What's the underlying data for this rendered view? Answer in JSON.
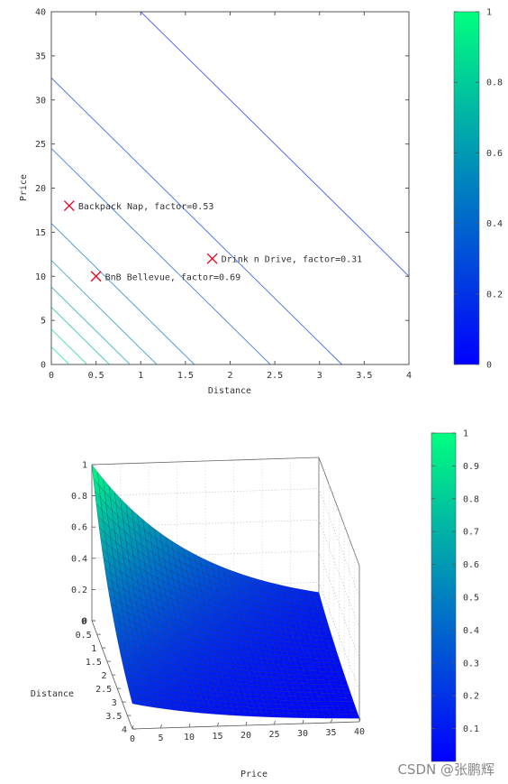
{
  "chart_data": [
    {
      "type": "contour",
      "xlabel": "Distance",
      "ylabel": "Price",
      "xlim": [
        0,
        4
      ],
      "ylim": [
        0,
        40
      ],
      "x_ticks": [
        "0",
        "0.5",
        "1",
        "1.5",
        "2",
        "2.5",
        "3",
        "3.5",
        "4"
      ],
      "y_ticks": [
        "0",
        "5",
        "10",
        "15",
        "20",
        "25",
        "30",
        "35",
        "40"
      ],
      "contour_intercepts": [
        {
          "distance": 0.2,
          "price": 2
        },
        {
          "distance": 0.4,
          "price": 4
        },
        {
          "distance": 0.65,
          "price": 6.5
        },
        {
          "distance": 0.88,
          "price": 8.8
        },
        {
          "distance": 1.18,
          "price": 11.8
        },
        {
          "distance": 1.6,
          "price": 16
        },
        {
          "distance": 2.45,
          "price": 24.5
        },
        {
          "distance": 3.25,
          "price": 32.5
        },
        {
          "distance": 5.0,
          "price": 50
        }
      ],
      "points": [
        {
          "label": "Backpack Nap, factor=0.53",
          "x": 0.2,
          "y": 18
        },
        {
          "label": "BnB Bellevue, factor=0.69",
          "x": 0.5,
          "y": 10
        },
        {
          "label": "Drink n Drive, factor=0.31",
          "x": 1.8,
          "y": 12
        }
      ],
      "colorbar": {
        "ticks": [
          "0",
          "0.2",
          "0.4",
          "0.6",
          "0.8",
          "1"
        ],
        "low_color": "#0000ff",
        "high_color": "#00ff80"
      }
    },
    {
      "type": "surface",
      "xlabel": "Price",
      "ylabel": "Distance",
      "x_ticks": [
        "0",
        "5",
        "10",
        "15",
        "20",
        "25",
        "30",
        "35",
        "40"
      ],
      "y_ticks": [
        "0",
        "0.5",
        "1",
        "1.5",
        "2",
        "2.5",
        "3",
        "3.5",
        "4"
      ],
      "z_ticks": [
        "0",
        "0.2",
        "0.4",
        "0.6",
        "0.8",
        "1"
      ],
      "colorbar": {
        "ticks": [
          "0.1",
          "0.2",
          "0.3",
          "0.4",
          "0.5",
          "0.6",
          "0.7",
          "0.8",
          "0.9",
          "1"
        ],
        "low_color": "#0000ff",
        "high_color": "#00ff80"
      }
    }
  ],
  "watermark": "CSDN @张鹏辉"
}
